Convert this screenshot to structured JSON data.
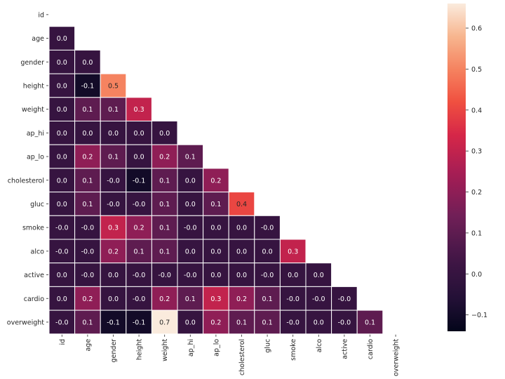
{
  "chart_data": {
    "type": "heatmap",
    "title": "",
    "xlabel": "",
    "ylabel": "",
    "variables": [
      "id",
      "age",
      "gender",
      "height",
      "weight",
      "ap_hi",
      "ap_lo",
      "cholesterol",
      "gluc",
      "smoke",
      "alco",
      "active",
      "cardio",
      "overweight"
    ],
    "mask": "upper triangle including diagonal",
    "values": [
      [],
      [
        "0.0"
      ],
      [
        "0.0",
        "0.0"
      ],
      [
        "0.0",
        "-0.1",
        "0.5"
      ],
      [
        "0.0",
        "0.1",
        "0.1",
        "0.3"
      ],
      [
        "0.0",
        "0.0",
        "0.0",
        "0.0",
        "0.0"
      ],
      [
        "0.0",
        "0.2",
        "0.1",
        "0.0",
        "0.2",
        "0.1"
      ],
      [
        "0.0",
        "0.1",
        "-0.0",
        "-0.1",
        "0.1",
        "0.0",
        "0.2"
      ],
      [
        "0.0",
        "0.1",
        "-0.0",
        "-0.0",
        "0.1",
        "0.0",
        "0.1",
        "0.4"
      ],
      [
        "-0.0",
        "-0.0",
        "0.3",
        "0.2",
        "0.1",
        "-0.0",
        "0.0",
        "0.0",
        "-0.0"
      ],
      [
        "-0.0",
        "-0.0",
        "0.2",
        "0.1",
        "0.1",
        "0.0",
        "0.0",
        "0.0",
        "0.0",
        "0.3"
      ],
      [
        "0.0",
        "-0.0",
        "0.0",
        "-0.0",
        "-0.0",
        "-0.0",
        "0.0",
        "0.0",
        "-0.0",
        "0.0",
        "0.0"
      ],
      [
        "0.0",
        "0.2",
        "0.0",
        "-0.0",
        "0.2",
        "0.1",
        "0.3",
        "0.2",
        "0.1",
        "-0.0",
        "-0.0",
        "-0.0"
      ],
      [
        "-0.0",
        "0.1",
        "-0.1",
        "-0.1",
        "0.7",
        "0.0",
        "0.2",
        "0.1",
        "0.1",
        "-0.0",
        "0.0",
        "-0.0",
        "0.1"
      ]
    ],
    "colorbar": {
      "range": [
        -0.14,
        0.66
      ],
      "ticks": [
        -0.1,
        0.0,
        0.1,
        0.2,
        0.3,
        0.4,
        0.5,
        0.6
      ],
      "tick_labels": [
        "−0.1",
        "0.0",
        "0.1",
        "0.2",
        "0.3",
        "0.4",
        "0.5",
        "0.6"
      ]
    },
    "colormap": "rocket",
    "grid": "white cell borders",
    "legend": "colorbar at right"
  }
}
